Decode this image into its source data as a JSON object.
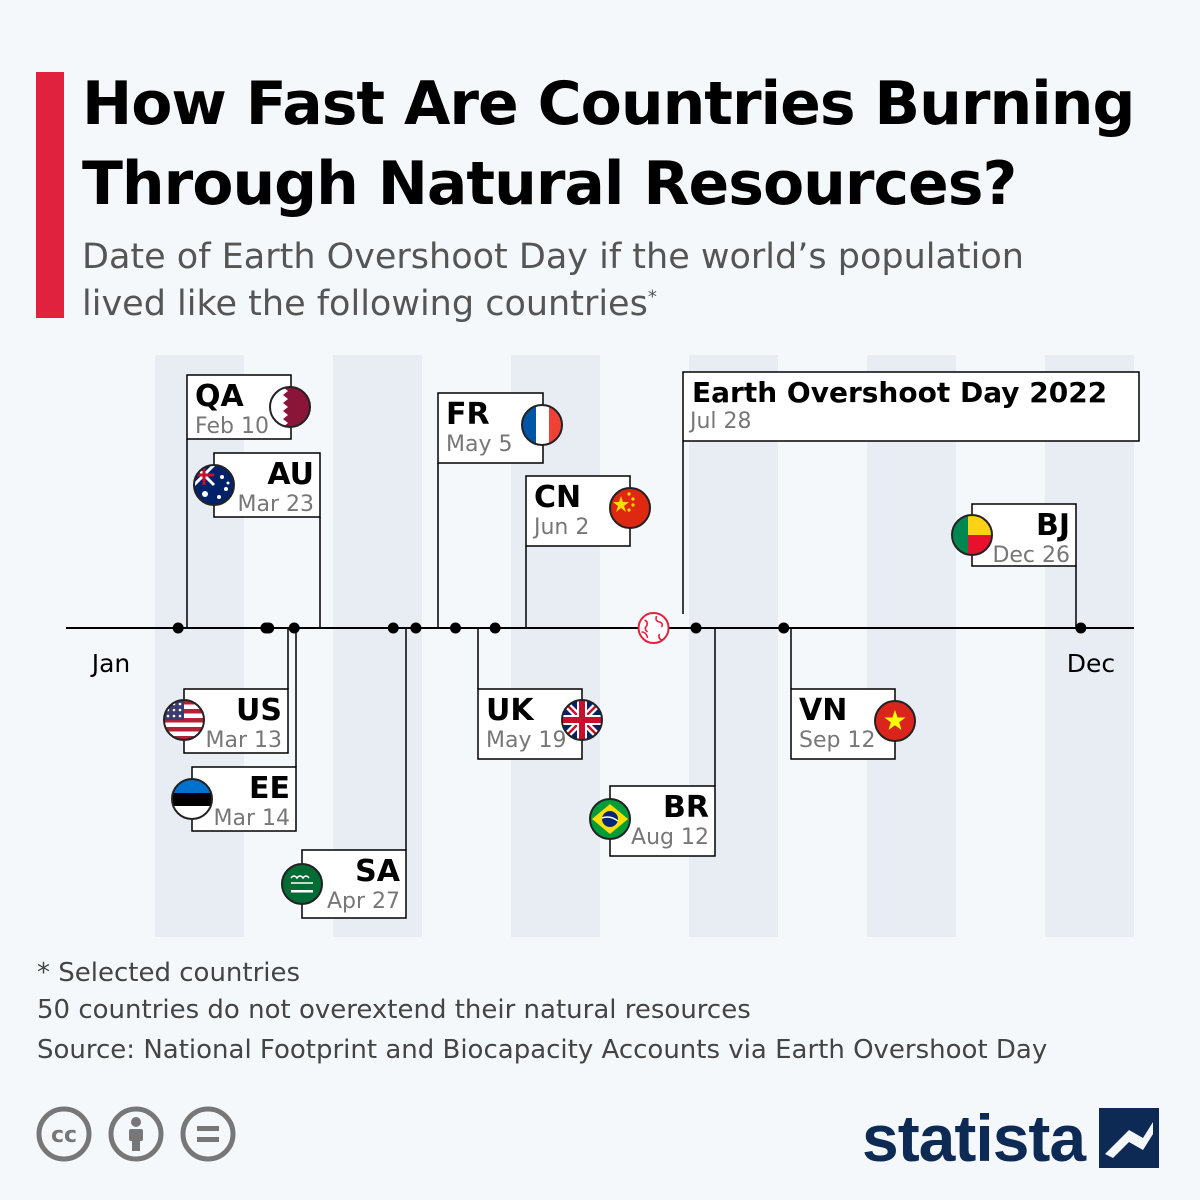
{
  "header": {
    "title": "How Fast Are Countries Burning Through Natural Resources?",
    "subtitle": "Date of Earth Overshoot Day if the world’s population lived like the following countries",
    "subtitle_mark": "*"
  },
  "chart_data": {
    "type": "timeline",
    "axis_start_label": "Jan",
    "axis_end_label": "Dec",
    "x_unit": "day of year",
    "xlim": [
      1,
      365
    ],
    "colors": {
      "axis": "#000000",
      "band": "#e8edf4",
      "highlight": "#e0223f"
    },
    "highlight": {
      "name": "Earth Overshoot Day 2022",
      "date": "Jul 28",
      "day": 209,
      "side": "above",
      "icon": "globe-icon"
    },
    "events": [
      {
        "code": "QA",
        "date": "Feb 10",
        "day": 41,
        "side": "above",
        "flag": "qatar-flag-icon"
      },
      {
        "code": "AU",
        "date": "Mar 23",
        "day": 82,
        "side": "above",
        "flag": "australia-flag-icon"
      },
      {
        "code": "US",
        "date": "Mar 13",
        "day": 72,
        "side": "below",
        "flag": "usa-flag-icon"
      },
      {
        "code": "EE",
        "date": "Mar 14",
        "day": 73,
        "side": "below",
        "flag": "estonia-flag-icon"
      },
      {
        "code": "SA",
        "date": "Apr 27",
        "day": 117,
        "side": "below",
        "flag": "saudi-arabia-flag-icon"
      },
      {
        "code": "FR",
        "date": "May 5",
        "day": 125,
        "side": "above",
        "flag": "france-flag-icon"
      },
      {
        "code": "UK",
        "date": "May 19",
        "day": 139,
        "side": "below",
        "flag": "uk-flag-icon"
      },
      {
        "code": "CN",
        "date": "Jun 2",
        "day": 153,
        "side": "above",
        "flag": "china-flag-icon"
      },
      {
        "code": "BR",
        "date": "Aug 12",
        "day": 224,
        "side": "below",
        "flag": "brazil-flag-icon"
      },
      {
        "code": "VN",
        "date": "Sep 12",
        "day": 255,
        "side": "below",
        "flag": "vietnam-flag-icon"
      },
      {
        "code": "BJ",
        "date": "Dec 26",
        "day": 360,
        "side": "above",
        "flag": "benin-flag-icon"
      }
    ]
  },
  "footer": {
    "note_selected": "* Selected countries",
    "note_countries": "50 countries do not overextend their natural resources",
    "source": "Source: National Footprint and Biocapacity Accounts via Earth Overshoot Day",
    "license_icons": [
      "cc-icon",
      "attribution-icon",
      "no-derivatives-icon"
    ],
    "brand": "statista"
  }
}
